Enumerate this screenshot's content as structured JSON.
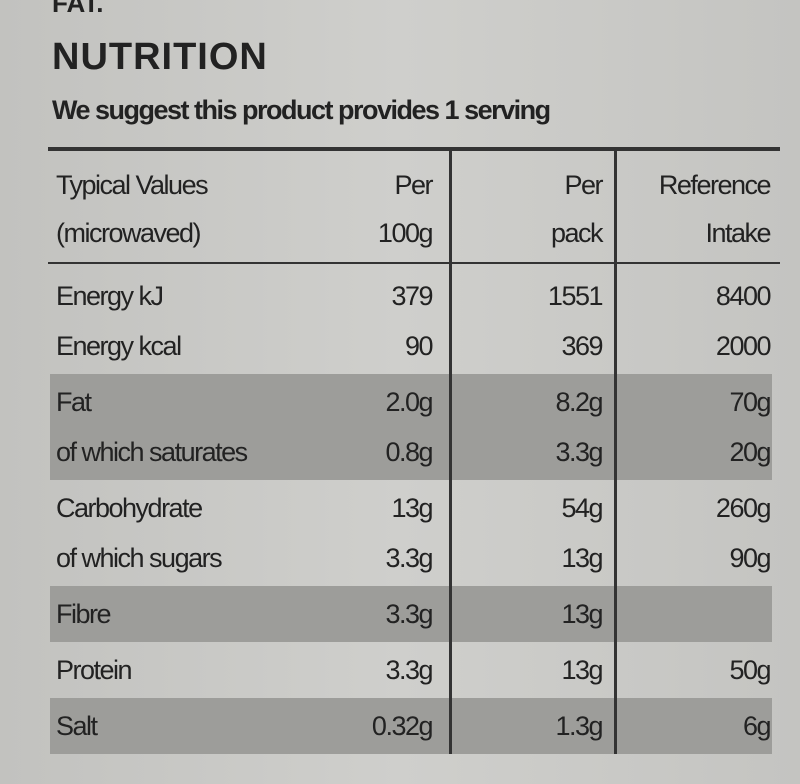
{
  "top_text": "FAT.",
  "title": "NUTRITION",
  "subtitle": "We suggest this product provides 1 serving",
  "table": {
    "header": [
      [
        "Typical Values",
        "Per",
        "Per",
        "Reference"
      ],
      [
        "(microwaved)",
        "100g",
        "pack",
        "Intake"
      ]
    ],
    "groups": [
      {
        "shaded": false,
        "rows": [
          [
            "Energy kJ",
            "379",
            "1551",
            "8400"
          ],
          [
            "Energy kcal",
            "90",
            "369",
            "2000"
          ]
        ]
      },
      {
        "shaded": true,
        "rows": [
          [
            "Fat",
            "2.0g",
            "8.2g",
            "70g"
          ],
          [
            "of which saturates",
            "0.8g",
            "3.3g",
            "20g"
          ]
        ]
      },
      {
        "shaded": false,
        "rows": [
          [
            "Carbohydrate",
            "13g",
            "54g",
            "260g"
          ],
          [
            "of which sugars",
            "3.3g",
            "13g",
            "90g"
          ]
        ]
      },
      {
        "shaded": true,
        "rows": [
          [
            "Fibre",
            "3.3g",
            "13g"
          ]
        ]
      },
      {
        "shaded": false,
        "rows": [
          [
            "Protein",
            "3.3g",
            "13g",
            "50g"
          ]
        ]
      },
      {
        "shaded": true,
        "rows": [
          [
            "Salt",
            "0.32g",
            "1.3g",
            "6g"
          ]
        ]
      }
    ]
  }
}
